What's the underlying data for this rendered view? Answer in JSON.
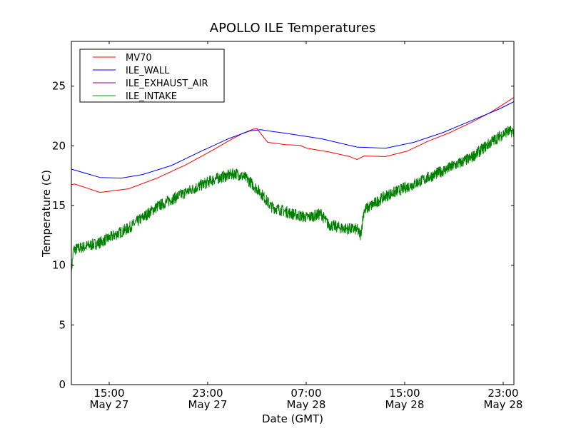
{
  "chart_data": {
    "type": "line",
    "title": "APOLLO ILE Temperatures",
    "xlabel": "Date (GMT)",
    "ylabel": "Temperature (C)",
    "x_units": "hours since May 27 00:00 GMT",
    "xlim": [
      11.93,
      47.87
    ],
    "ylim": [
      0,
      28.75
    ],
    "yticks": [
      0,
      5,
      10,
      15,
      20,
      25
    ],
    "xticks": [
      {
        "value": 15,
        "label_time": "15:00",
        "label_date": "May 27"
      },
      {
        "value": 23,
        "label_time": "23:00",
        "label_date": "May 27"
      },
      {
        "value": 31,
        "label_time": "07:00",
        "label_date": "May 28"
      },
      {
        "value": 39,
        "label_time": "15:00",
        "label_date": "May 28"
      },
      {
        "value": 47,
        "label_time": "23:00",
        "label_date": "May 28"
      }
    ],
    "grid": false,
    "legend_placement": "top-left",
    "series": [
      {
        "name": "MV70",
        "color": "#ff0000",
        "legend_color": "#ff0000",
        "noise": 0,
        "x": [
          11.93,
          12.2,
          14.25,
          16.57,
          18.89,
          21.2,
          23.52,
          24.68,
          25.84,
          26.71,
          27.0,
          27.29,
          27.87,
          29.32,
          30.48,
          31.06,
          32.8,
          34.54,
          35.12,
          35.7,
          37.44,
          39.18,
          40.92,
          42.65,
          44.39,
          46.13,
          47.87
        ],
        "y": [
          16.75,
          16.8,
          16.1,
          16.4,
          17.3,
          18.4,
          19.7,
          20.4,
          21.05,
          21.4,
          21.45,
          21.05,
          20.3,
          20.1,
          20.05,
          19.8,
          19.5,
          19.1,
          18.85,
          19.15,
          19.1,
          19.55,
          20.4,
          21.1,
          21.95,
          22.9,
          24.05
        ]
      },
      {
        "name": "ILE_WALL",
        "color": "#0000ff",
        "legend_color": "#0000ff",
        "noise": 0,
        "x": [
          11.93,
          14.25,
          15.99,
          17.73,
          20.05,
          22.36,
          24.68,
          26.42,
          27.29,
          29.32,
          32.22,
          35.12,
          37.44,
          39.76,
          42.07,
          44.39,
          46.71,
          47.87
        ],
        "y": [
          18.05,
          17.35,
          17.3,
          17.6,
          18.35,
          19.5,
          20.6,
          21.25,
          21.35,
          21.05,
          20.6,
          19.9,
          19.8,
          20.3,
          21.1,
          22.1,
          23.1,
          23.7
        ]
      },
      {
        "name": "ILE_EXHAUST_AIR",
        "color": "#800080",
        "legend_color": "#800080",
        "noise": 0,
        "x": [],
        "y": []
      },
      {
        "name": "ILE_INTAKE",
        "color": "#008000",
        "legend_color": "#00a000",
        "noise": 0.6,
        "x": [
          11.93,
          12.1,
          14.25,
          16.57,
          18.89,
          21.2,
          23.52,
          25.26,
          26.13,
          27.29,
          28.16,
          29.9,
          31.06,
          32.22,
          32.8,
          33.96,
          35.12,
          35.41,
          35.7,
          37.44,
          39.76,
          42.07,
          44.39,
          46.13,
          47.29,
          47.87
        ],
        "y": [
          9.5,
          11.3,
          11.9,
          13.1,
          14.9,
          16.1,
          17.2,
          17.7,
          17.3,
          16.1,
          14.9,
          14.3,
          14.0,
          14.3,
          13.4,
          13.1,
          13.0,
          12.5,
          14.6,
          15.8,
          16.8,
          17.9,
          19.0,
          20.4,
          21.2,
          21.2
        ]
      }
    ]
  }
}
